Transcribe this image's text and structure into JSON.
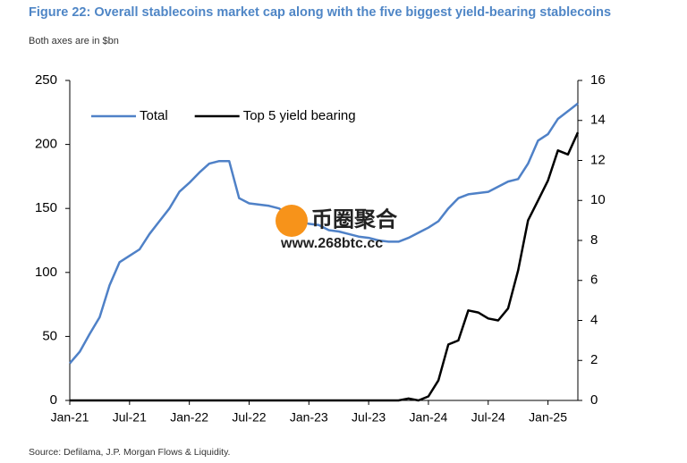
{
  "chart_data": {
    "type": "line",
    "title": "Figure 22: Overall stablecoins market cap along with the five biggest yield-bearing stablecoins",
    "subtitle": "Both axes are in $bn",
    "source": "Source: Defilama, J.P. Morgan Flows & Liquidity.",
    "watermark": [
      "币圈聚合",
      "www.268btc.cc"
    ],
    "x": [
      "2021-01",
      "2021-02",
      "2021-03",
      "2021-04",
      "2021-05",
      "2021-06",
      "2021-07",
      "2021-08",
      "2021-09",
      "2021-10",
      "2021-11",
      "2021-12",
      "2022-01",
      "2022-02",
      "2022-03",
      "2022-04",
      "2022-05",
      "2022-06",
      "2022-07",
      "2022-08",
      "2022-09",
      "2022-10",
      "2022-11",
      "2022-12",
      "2023-01",
      "2023-02",
      "2023-03",
      "2023-04",
      "2023-05",
      "2023-06",
      "2023-07",
      "2023-08",
      "2023-09",
      "2023-10",
      "2023-11",
      "2023-12",
      "2024-01",
      "2024-02",
      "2024-03",
      "2024-04",
      "2024-05",
      "2024-06",
      "2024-07",
      "2024-08",
      "2024-09",
      "2024-10",
      "2024-11",
      "2024-12",
      "2025-01",
      "2025-02",
      "2025-03",
      "2025-04"
    ],
    "xticks": [
      {
        "value": "2021-01",
        "label": "Jan-21"
      },
      {
        "value": "2021-07",
        "label": "Jul-21"
      },
      {
        "value": "2022-01",
        "label": "Jan-22"
      },
      {
        "value": "2022-07",
        "label": "Jul-22"
      },
      {
        "value": "2023-01",
        "label": "Jan-23"
      },
      {
        "value": "2023-07",
        "label": "Jul-23"
      },
      {
        "value": "2024-01",
        "label": "Jan-24"
      },
      {
        "value": "2024-07",
        "label": "Jul-24"
      },
      {
        "value": "2025-01",
        "label": "Jan-25"
      }
    ],
    "series": [
      {
        "name": "Total",
        "color": "#4f81c7",
        "axis": "y",
        "values": [
          29,
          38,
          52,
          65,
          90,
          108,
          113,
          118,
          130,
          140,
          150,
          163,
          170,
          178,
          185,
          187,
          187,
          158,
          154,
          153,
          152,
          150,
          145,
          140,
          138,
          137,
          133,
          132,
          130,
          128,
          127,
          125,
          124,
          124,
          127,
          131,
          135,
          140,
          150,
          158,
          161,
          162,
          163,
          167,
          171,
          173,
          185,
          203,
          208,
          220,
          226,
          232
        ]
      },
      {
        "name": "Top 5 yield bearing",
        "color": "#000000",
        "axis": "y2",
        "values": [
          0,
          0,
          0,
          0,
          0,
          0,
          0,
          0,
          0,
          0,
          0,
          0,
          0,
          0,
          0,
          0,
          0,
          0,
          0,
          0,
          0,
          0,
          0,
          0,
          0,
          0,
          0,
          0,
          0,
          0,
          0,
          0,
          0,
          0,
          0.1,
          0,
          0.2,
          1.0,
          2.8,
          3.0,
          4.5,
          4.4,
          4.1,
          4.0,
          4.6,
          6.5,
          9.0,
          10.0,
          11.0,
          12.5,
          12.3,
          13.4
        ]
      }
    ],
    "ylim": [
      0,
      250
    ],
    "yticks": [
      0,
      50,
      100,
      150,
      200,
      250
    ],
    "y2lim": [
      0,
      16
    ],
    "y2ticks": [
      0,
      2,
      4,
      6,
      8,
      10,
      12,
      14,
      16
    ],
    "grid": false,
    "legend": "upper left"
  }
}
